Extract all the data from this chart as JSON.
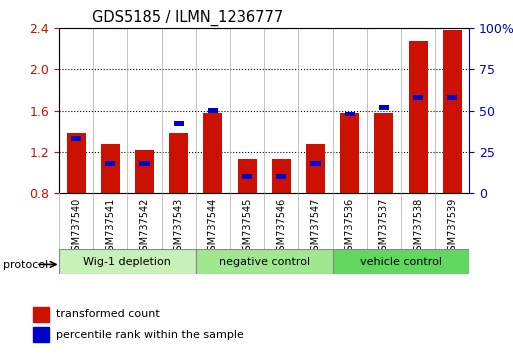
{
  "title": "GDS5185 / ILMN_1236777",
  "samples": [
    "GSM737540",
    "GSM737541",
    "GSM737542",
    "GSM737543",
    "GSM737544",
    "GSM737545",
    "GSM737546",
    "GSM737547",
    "GSM737536",
    "GSM737537",
    "GSM737538",
    "GSM737539"
  ],
  "red_values": [
    1.38,
    1.28,
    1.22,
    1.38,
    1.58,
    1.13,
    1.13,
    1.28,
    1.58,
    1.58,
    2.28,
    2.38
  ],
  "blue_marker_pct": [
    33,
    18,
    18,
    42,
    50,
    10,
    10,
    18,
    48,
    52,
    58,
    58
  ],
  "groups": [
    {
      "label": "Wig-1 depletion",
      "start": 0,
      "end": 4,
      "color": "#c8f0b8"
    },
    {
      "label": "negative control",
      "start": 4,
      "end": 8,
      "color": "#a0e890"
    },
    {
      "label": "vehicle control",
      "start": 8,
      "end": 12,
      "color": "#60d860"
    }
  ],
  "ylim_left": [
    0.8,
    2.4
  ],
  "ylim_right": [
    0,
    100
  ],
  "yticks_left": [
    0.8,
    1.2,
    1.6,
    2.0,
    2.4
  ],
  "yticks_right": [
    0,
    25,
    50,
    75,
    100
  ],
  "bar_color": "#cc1100",
  "blue_color": "#0000cc",
  "ylabel_left_color": "#cc1100",
  "ylabel_right_color": "#0000cc",
  "grid_color": "#000000",
  "background_color": "#ffffff",
  "protocol_label": "protocol",
  "legend_red": "transformed count",
  "legend_blue": "percentile rank within the sample"
}
